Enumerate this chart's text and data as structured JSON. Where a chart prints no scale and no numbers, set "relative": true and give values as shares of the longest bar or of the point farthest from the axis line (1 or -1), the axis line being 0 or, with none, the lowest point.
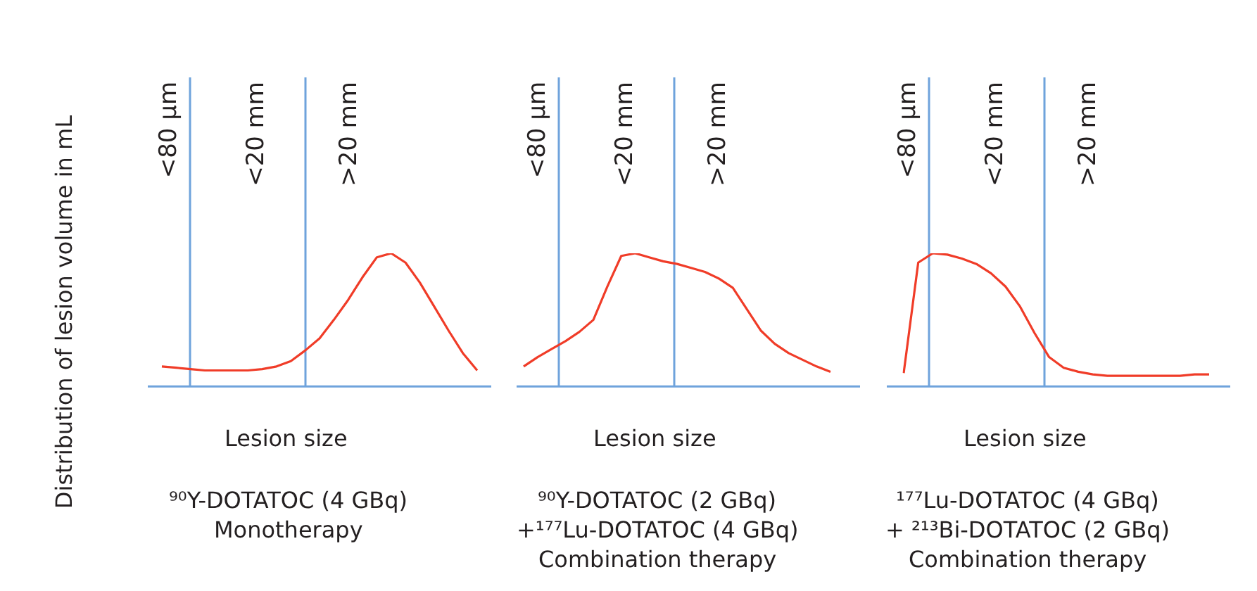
{
  "chart_data": [
    {
      "type": "line",
      "relative": true,
      "ylabel": "Distribution of lesion volume in mL",
      "xlabel": "Lesion size",
      "grid": false,
      "legend": false,
      "marker": "none",
      "line_style": "solid",
      "categories": [
        null,
        null,
        null,
        null,
        null,
        null,
        null,
        null,
        null,
        null,
        null,
        null,
        null,
        null,
        null,
        null,
        null,
        null,
        null,
        null,
        null,
        null,
        null
      ],
      "series": [
        {
          "color": "#f03c28",
          "values": [
            0.15,
            0.14,
            0.13,
            0.12,
            0.12,
            0.12,
            0.12,
            0.13,
            0.15,
            0.19,
            0.27,
            0.36,
            0.5,
            0.65,
            0.82,
            0.97,
            1,
            0.93,
            0.78,
            0.6,
            0.42,
            0.25,
            0.12
          ]
        }
      ],
      "annotations": [
        "<80 µm",
        "<20 mm",
        ">20 mm",
        "⁹⁰Y-DOTATOC (4 GBq)",
        "Monotherapy"
      ]
    },
    {
      "type": "line",
      "relative": true,
      "xlabel": "Lesion size",
      "grid": false,
      "legend": false,
      "marker": "none",
      "line_style": "solid",
      "categories": [
        null,
        null,
        null,
        null,
        null,
        null,
        null,
        null,
        null,
        null,
        null,
        null,
        null,
        null,
        null,
        null,
        null,
        null,
        null,
        null,
        null,
        null,
        null
      ],
      "series": [
        {
          "color": "#f03c28",
          "values": [
            0.15,
            0.22,
            0.28,
            0.34,
            0.41,
            0.5,
            0.75,
            0.98,
            1,
            0.97,
            0.94,
            0.92,
            0.89,
            0.86,
            0.81,
            0.74,
            0.58,
            0.42,
            0.32,
            0.25,
            0.2,
            0.15,
            0.11
          ]
        }
      ],
      "annotations": [
        "<80 µm",
        "<20 mm",
        ">20 mm",
        "⁹⁰Y-DOTATOC (2 GBq)",
        "+¹⁷⁷Lu-DOTATOC (4 GBq)",
        "Combination therapy"
      ]
    },
    {
      "type": "line",
      "relative": true,
      "xlabel": "Lesion size",
      "grid": false,
      "legend": false,
      "marker": "none",
      "line_style": "solid",
      "categories": [
        null,
        null,
        null,
        null,
        null,
        null,
        null,
        null,
        null,
        null,
        null,
        null,
        null,
        null,
        null,
        null,
        null,
        null,
        null,
        null,
        null,
        null
      ],
      "series": [
        {
          "color": "#f03c28",
          "values": [
            0.1,
            0.93,
            1,
            0.99,
            0.96,
            0.92,
            0.85,
            0.75,
            0.6,
            0.4,
            0.22,
            0.14,
            0.11,
            0.09,
            0.08,
            0.08,
            0.08,
            0.08,
            0.08,
            0.08,
            0.09,
            0.09
          ]
        }
      ],
      "annotations": [
        "<80 µm",
        "<20 mm",
        ">20 mm",
        "¹⁷⁷Lu-DOTATOC (4 GBq)",
        "+ ²¹³Bi-DOTATOC (2 GBq)",
        "Combination therapy"
      ]
    }
  ]
}
